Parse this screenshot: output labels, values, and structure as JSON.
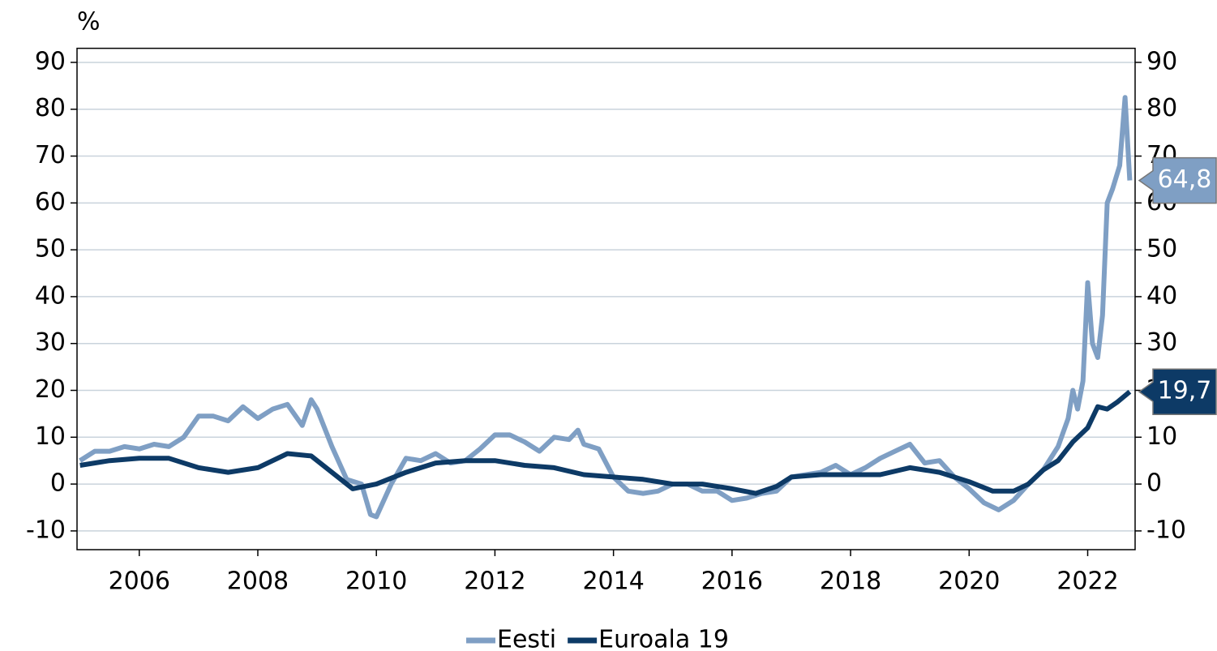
{
  "chart_data": {
    "type": "line",
    "y_unit": "%",
    "xlim": [
      2004.95,
      2022.8
    ],
    "xticks": [
      2006,
      2008,
      2010,
      2012,
      2014,
      2016,
      2018,
      2020,
      2022
    ],
    "ylim": [
      -14,
      93
    ],
    "yticks": [
      -10,
      0,
      10,
      20,
      30,
      40,
      50,
      60,
      70,
      80,
      90
    ],
    "grid": true,
    "legend": "bottom",
    "series": [
      {
        "name": "Eesti",
        "color": "#7f9fc4",
        "end_label": "64,8",
        "x": [
          2005.0,
          2005.25,
          2005.5,
          2005.75,
          2006.0,
          2006.25,
          2006.5,
          2006.75,
          2007.0,
          2007.25,
          2007.5,
          2007.75,
          2008.0,
          2008.25,
          2008.5,
          2008.75,
          2008.9,
          2009.0,
          2009.25,
          2009.5,
          2009.75,
          2009.9,
          2010.0,
          2010.25,
          2010.5,
          2010.75,
          2011.0,
          2011.25,
          2011.5,
          2011.75,
          2012.0,
          2012.25,
          2012.5,
          2012.75,
          2013.0,
          2013.25,
          2013.4,
          2013.5,
          2013.75,
          2014.0,
          2014.25,
          2014.5,
          2014.75,
          2015.0,
          2015.25,
          2015.5,
          2015.75,
          2016.0,
          2016.25,
          2016.5,
          2016.75,
          2017.0,
          2017.25,
          2017.5,
          2017.75,
          2018.0,
          2018.25,
          2018.5,
          2018.75,
          2019.0,
          2019.25,
          2019.5,
          2019.75,
          2020.0,
          2020.25,
          2020.5,
          2020.75,
          2021.0,
          2021.25,
          2021.5,
          2021.67,
          2021.75,
          2021.83,
          2021.92,
          2022.0,
          2022.08,
          2022.17,
          2022.25,
          2022.33,
          2022.42,
          2022.54,
          2022.63,
          2022.71
        ],
        "values": [
          5,
          7,
          7,
          8,
          7.5,
          8.5,
          8,
          10,
          14.5,
          14.5,
          13.5,
          16.5,
          14,
          16,
          17,
          12.5,
          18,
          16,
          8,
          1,
          0,
          -6.5,
          -7,
          0,
          5.5,
          5,
          6.5,
          4.5,
          5,
          7.5,
          10.5,
          10.5,
          9,
          7,
          10,
          9.5,
          11.5,
          8.5,
          7.5,
          1.5,
          -1.5,
          -2,
          -1.5,
          0,
          0,
          -1.5,
          -1.5,
          -3.5,
          -3,
          -2,
          -1.5,
          1.5,
          2,
          2.5,
          4,
          2,
          3.5,
          5.5,
          7,
          8.5,
          4.5,
          5,
          1.5,
          -1,
          -4,
          -5.5,
          -3.5,
          0,
          3,
          8,
          14,
          20,
          16,
          22,
          43,
          30,
          27,
          36,
          60,
          63,
          68,
          82.5,
          64.8
        ]
      },
      {
        "name": "Euroala 19",
        "color": "#0d3a66",
        "end_label": "19,7",
        "x": [
          2005.0,
          2005.5,
          2006.0,
          2006.5,
          2007.0,
          2007.5,
          2008.0,
          2008.5,
          2008.9,
          2009.25,
          2009.6,
          2010.0,
          2010.5,
          2011.0,
          2011.5,
          2012.0,
          2012.5,
          2013.0,
          2013.5,
          2014.0,
          2014.5,
          2015.0,
          2015.5,
          2016.0,
          2016.4,
          2016.75,
          2017.0,
          2017.5,
          2018.0,
          2018.5,
          2019.0,
          2019.5,
          2020.0,
          2020.4,
          2020.75,
          2021.0,
          2021.25,
          2021.5,
          2021.75,
          2022.0,
          2022.17,
          2022.33,
          2022.5,
          2022.71
        ],
        "values": [
          4,
          5,
          5.5,
          5.5,
          3.5,
          2.5,
          3.5,
          6.5,
          6,
          2.5,
          -1,
          0,
          2.5,
          4.5,
          5,
          5,
          4,
          3.5,
          2,
          1.5,
          1,
          0,
          0,
          -1,
          -2,
          -0.5,
          1.5,
          2,
          2,
          2,
          3.5,
          2.5,
          0.5,
          -1.5,
          -1.5,
          0,
          3,
          5,
          9,
          12,
          16.5,
          16,
          17.5,
          19.7
        ]
      }
    ]
  }
}
